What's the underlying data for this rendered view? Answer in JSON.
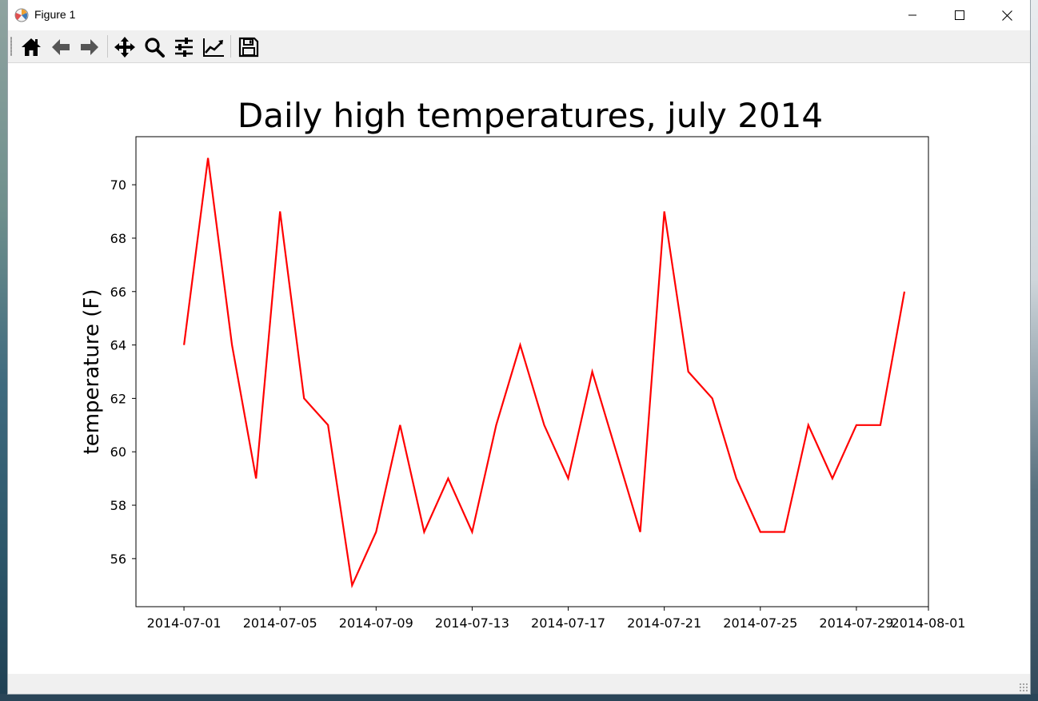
{
  "window": {
    "title": "Figure 1"
  },
  "toolbar": {
    "buttons": [
      {
        "name": "home-button",
        "icon": "home-icon"
      },
      {
        "name": "back-button",
        "icon": "arrow-left-icon"
      },
      {
        "name": "forward-button",
        "icon": "arrow-right-icon"
      },
      {
        "name": "pan-button",
        "icon": "move-icon"
      },
      {
        "name": "zoom-button",
        "icon": "magnifier-icon"
      },
      {
        "name": "subplots-button",
        "icon": "sliders-icon"
      },
      {
        "name": "edit-axes-button",
        "icon": "line-chart-icon"
      },
      {
        "name": "save-button",
        "icon": "floppy-disk-icon"
      }
    ]
  },
  "chart_data": {
    "type": "line",
    "title": "Daily high temperatures, july 2014",
    "xlabel": "",
    "ylabel": "temperature (F)",
    "x": [
      "2014-07-01",
      "2014-07-02",
      "2014-07-03",
      "2014-07-04",
      "2014-07-05",
      "2014-07-06",
      "2014-07-07",
      "2014-07-08",
      "2014-07-09",
      "2014-07-10",
      "2014-07-11",
      "2014-07-12",
      "2014-07-13",
      "2014-07-14",
      "2014-07-15",
      "2014-07-16",
      "2014-07-17",
      "2014-07-18",
      "2014-07-19",
      "2014-07-20",
      "2014-07-21",
      "2014-07-22",
      "2014-07-23",
      "2014-07-24",
      "2014-07-25",
      "2014-07-26",
      "2014-07-27",
      "2014-07-28",
      "2014-07-29",
      "2014-07-30",
      "2014-07-31"
    ],
    "series": [
      {
        "color": "#ff0000",
        "values": [
          64,
          71,
          64,
          59,
          69,
          62,
          61,
          55,
          57,
          61,
          57,
          59,
          57,
          61,
          64,
          61,
          59,
          63,
          60,
          57,
          69,
          63,
          62,
          59,
          57,
          57,
          61,
          59,
          61,
          61,
          66
        ]
      }
    ],
    "xticks": [
      "2014-07-01",
      "2014-07-05",
      "2014-07-09",
      "2014-07-13",
      "2014-07-17",
      "2014-07-21",
      "2014-07-25",
      "2014-07-29",
      "2014-08-01"
    ],
    "yticks": [
      56,
      58,
      60,
      62,
      64,
      66,
      68,
      70
    ],
    "xlim": [
      "2014-06-29",
      "2014-08-01"
    ],
    "ylim": [
      54.2,
      71.8
    ],
    "grid": false
  }
}
